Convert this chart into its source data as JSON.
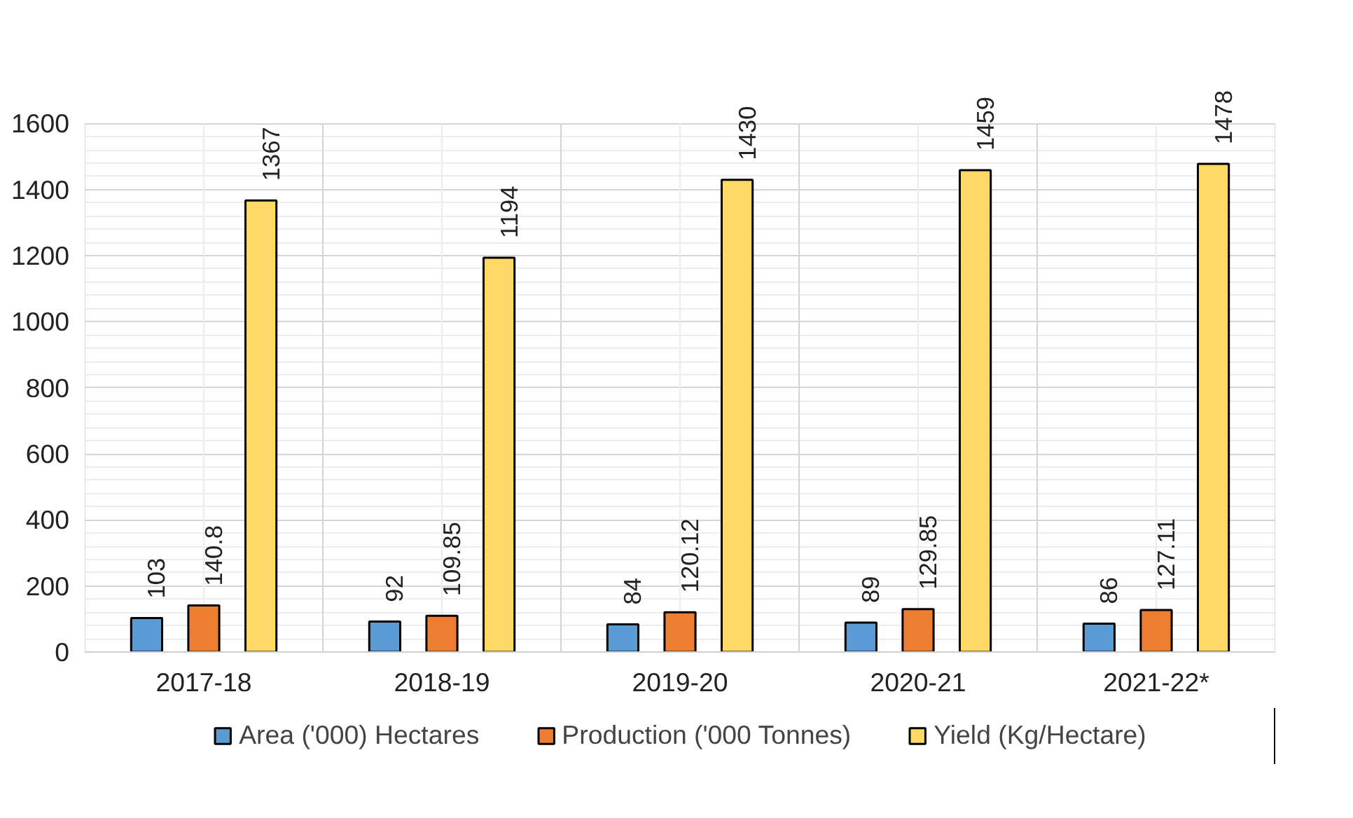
{
  "chart_data": {
    "type": "bar",
    "categories": [
      "2017-18",
      "2018-19",
      "2019-20",
      "2020-21",
      "2021-22*"
    ],
    "series": [
      {
        "name": "Area ('000) Hectares",
        "color": "#5b9bd5",
        "values": [
          103,
          92,
          84,
          89,
          86
        ]
      },
      {
        "name": "Production ('000 Tonnes)",
        "color": "#ed7d31",
        "values": [
          140.8,
          109.85,
          120.12,
          129.85,
          127.11
        ]
      },
      {
        "name": "Yield (Kg/Hectare)",
        "color": "#ffd966",
        "values": [
          1367,
          1194,
          1430,
          1459,
          1478
        ]
      }
    ],
    "ylim": [
      0,
      1600
    ],
    "yticks": [
      0,
      200,
      400,
      600,
      800,
      1000,
      1200,
      1400,
      1600
    ],
    "grid": true,
    "legend": "bottom",
    "data_labels": true
  }
}
